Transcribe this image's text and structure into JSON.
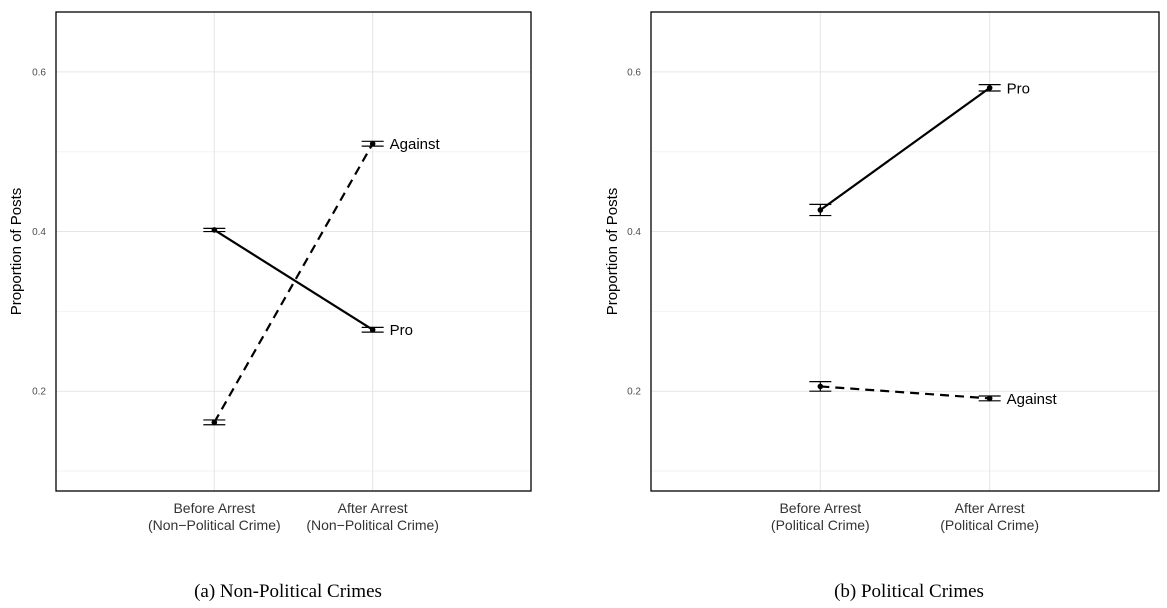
{
  "chart_data": [
    {
      "type": "line",
      "caption": "(a) Non-Political Crimes",
      "title": "",
      "xlabel": "",
      "ylabel": "Proportion of Posts",
      "categories": [
        "Before Arrest\n(Non−Political Crime)",
        "After Arrest\n(Non−Political Crime)"
      ],
      "ylim": [
        0.075,
        0.675
      ],
      "yticks": [
        0.2,
        0.4,
        0.6
      ],
      "ytick_labels": [
        "0.2",
        "0.4",
        "0.6"
      ],
      "minor_yticks": [
        0.1,
        0.3,
        0.5
      ],
      "grid": true,
      "series": [
        {
          "name": "Pro",
          "style": "solid",
          "values": [
            0.402,
            0.277
          ],
          "err": [
            0.002,
            0.003
          ]
        },
        {
          "name": "Against",
          "style": "dashed",
          "values": [
            0.161,
            0.51
          ],
          "err": [
            0.003,
            0.003
          ]
        }
      ]
    },
    {
      "type": "line",
      "caption": "(b) Political Crimes",
      "title": "",
      "xlabel": "",
      "ylabel": "Proportion of Posts",
      "categories": [
        "Before Arrest\n(Political Crime)",
        "After Arrest\n(Political Crime)"
      ],
      "ylim": [
        0.075,
        0.675
      ],
      "yticks": [
        0.2,
        0.4,
        0.6
      ],
      "ytick_labels": [
        "0.2",
        "0.4",
        "0.6"
      ],
      "minor_yticks": [
        0.1,
        0.3,
        0.5
      ],
      "grid": true,
      "series": [
        {
          "name": "Pro",
          "style": "solid",
          "values": [
            0.427,
            0.58
          ],
          "err": [
            0.007,
            0.004
          ]
        },
        {
          "name": "Against",
          "style": "dashed",
          "values": [
            0.206,
            0.191
          ],
          "err": [
            0.006,
            0.003
          ]
        }
      ]
    }
  ]
}
